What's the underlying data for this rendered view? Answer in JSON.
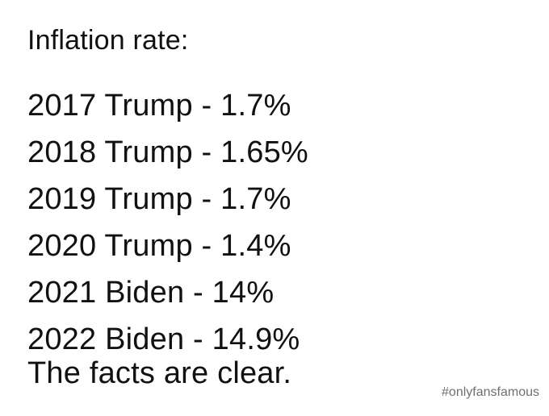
{
  "post": {
    "heading": "Inflation rate:",
    "rows": [
      {
        "text": "2017 Trump - 1.7%"
      },
      {
        "text": "2018 Trump - 1.65%"
      },
      {
        "text": "2019 Trump - 1.7%"
      },
      {
        "text": "2020 Trump - 1.4%"
      },
      {
        "text": "2021 Biden - 14%"
      },
      {
        "text": "2022 Biden - 14.9%"
      }
    ],
    "conclusion": "The facts are clear."
  },
  "watermark": {
    "hashtag": "#onlyfansfamous"
  },
  "colors": {
    "background": "#ffffff",
    "text": "#111111",
    "watermark": "#6f6f6f"
  }
}
